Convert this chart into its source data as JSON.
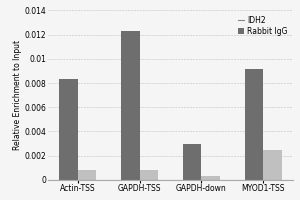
{
  "categories": [
    "Actin-TSS",
    "GAPDH-TSS",
    "GAPDH-down",
    "MYOD1-TSS"
  ],
  "idh2_values": [
    0.0083,
    0.0123,
    0.003,
    0.0092
  ],
  "igg_values": [
    0.0008,
    0.0008,
    0.0003,
    0.00245
  ],
  "idh2_color": "#6e6e6e",
  "igg_color": "#c0c0c0",
  "ylabel": "Relative Enrichment to Input",
  "ylim": [
    0,
    0.014
  ],
  "yticks": [
    0,
    0.002,
    0.004,
    0.006,
    0.008,
    0.01,
    0.012,
    0.014
  ],
  "ytick_labels": [
    "0",
    "0.002",
    "0.004",
    "0.006",
    "0.008",
    "0.01",
    "0.012",
    "0.014"
  ],
  "legend_labels": [
    "IDH2",
    "Rabbit IgG"
  ],
  "bar_width": 0.3,
  "background_color": "#f5f5f5",
  "fig_bg": "#f5f5f5"
}
